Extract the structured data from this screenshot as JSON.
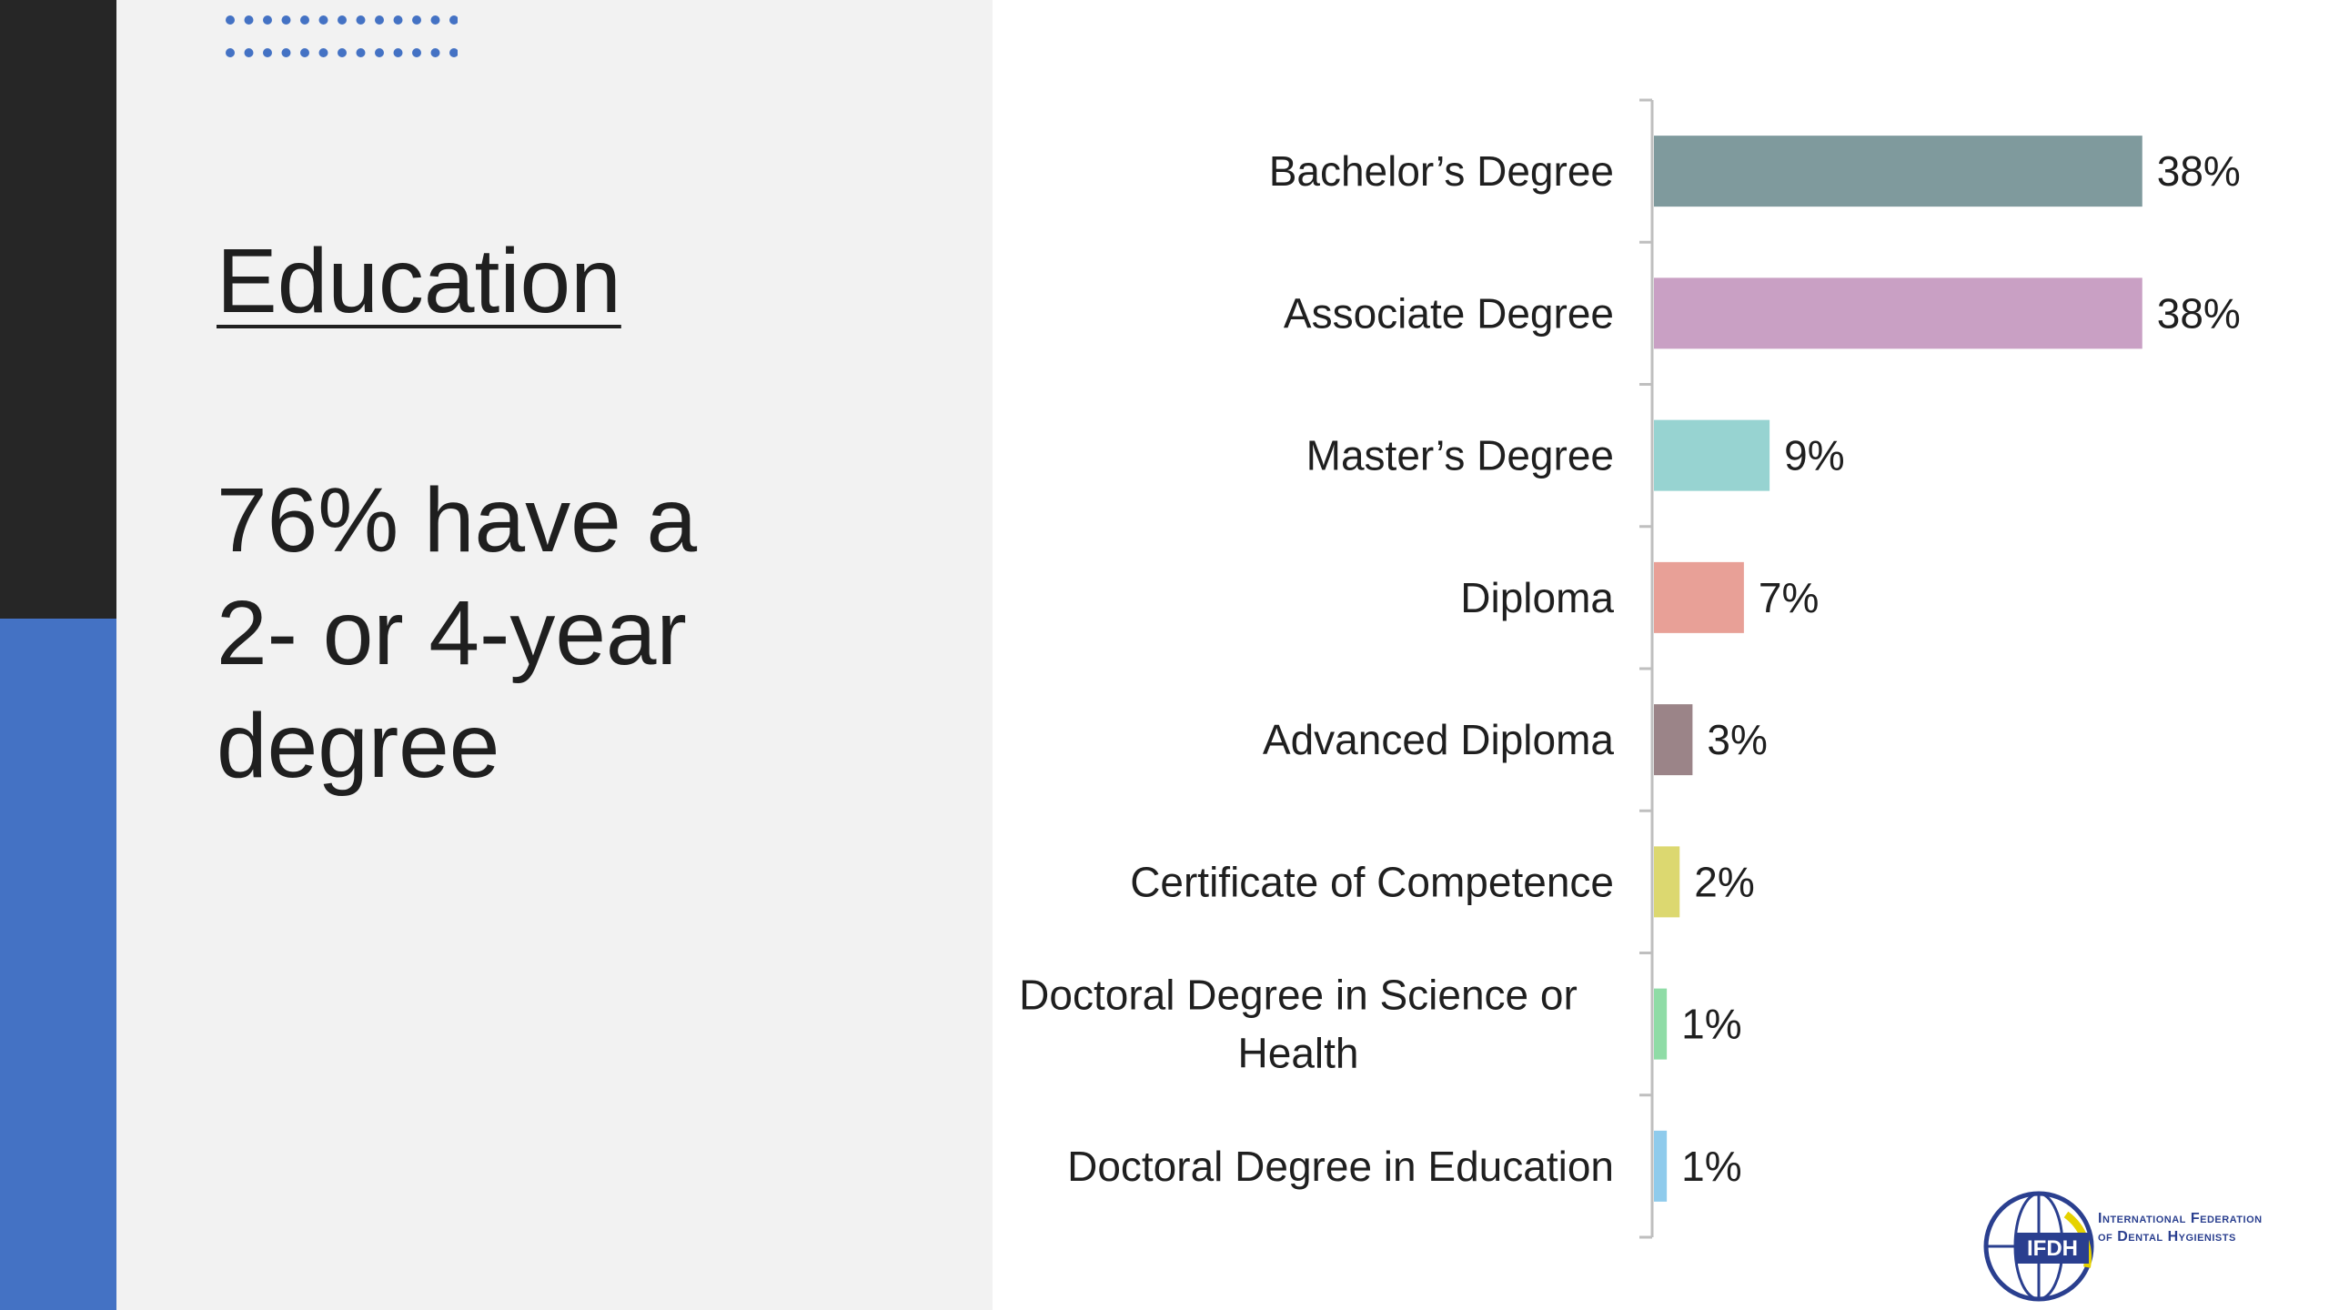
{
  "slide": {
    "title": "Education",
    "subtitle_lines": [
      "76% have a",
      "2- or 4-year",
      "degree"
    ]
  },
  "colors": {
    "sidebar_dark": "#262626",
    "sidebar_blue": "#4472c4",
    "panel_bg": "#f2f2f2",
    "dots": "#4472c4",
    "axis": "#bfbfbf",
    "text": "#1f1f1f"
  },
  "logo": {
    "mark": "IFDH",
    "line1": "International Federation",
    "line2": "of Dental Hygienists"
  },
  "chart_data": {
    "type": "bar",
    "orientation": "horizontal",
    "categories": [
      "Bachelor’s Degree",
      "Associate Degree",
      "Master’s Degree",
      "Diploma",
      "Advanced Diploma",
      "Certificate of Competence",
      "Doctoral Degree in Science or Health",
      "Doctoral Degree in Education"
    ],
    "category_lines": [
      [
        "Bachelor’s Degree"
      ],
      [
        "Associate Degree"
      ],
      [
        "Master’s Degree"
      ],
      [
        "Diploma"
      ],
      [
        "Advanced Diploma"
      ],
      [
        "Certificate of Competence"
      ],
      [
        "Doctoral Degree in Science or",
        "Health"
      ],
      [
        "Doctoral Degree in Education"
      ]
    ],
    "values": [
      38,
      38,
      9,
      7,
      3,
      2,
      1,
      1
    ],
    "data_labels": [
      "38%",
      "38%",
      "9%",
      "7%",
      "3%",
      "2%",
      "1%",
      "1%"
    ],
    "bar_colors": [
      "#7f9a9d",
      "#c9a0c4",
      "#97d3d1",
      "#e8a097",
      "#9b8488",
      "#dcd870",
      "#8fdca6",
      "#8fcbec"
    ],
    "xlim": [
      0,
      40
    ],
    "grid": false,
    "legend": "none"
  }
}
